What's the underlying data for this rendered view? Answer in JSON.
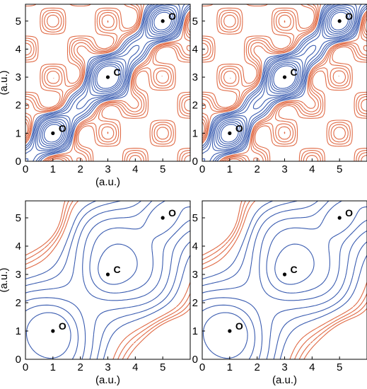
{
  "colors": {
    "positive_contour": "#3a5cb0",
    "negative_contour": "#e06a45",
    "axes": "#000000"
  },
  "axis_unit_label": "(a.u.)",
  "panels": [
    {
      "id": "top-left",
      "xlabel": "(a.u.)",
      "ylabel": "(a.u.)",
      "xlim": [
        0,
        6
      ],
      "ylim": [
        0,
        5.6
      ],
      "xticks": [
        "0",
        "1",
        "2",
        "3",
        "4",
        "5"
      ],
      "yticks": [
        "0",
        "1",
        "2",
        "3",
        "4",
        "5"
      ],
      "atoms": [
        {
          "label": "O",
          "x": 1,
          "y": 1
        },
        {
          "label": "C",
          "x": 3,
          "y": 3
        },
        {
          "label": "O",
          "x": 5,
          "y": 5
        }
      ]
    },
    {
      "id": "top-right",
      "xlabel": "",
      "ylabel": "",
      "xlim": [
        0,
        6
      ],
      "ylim": [
        0,
        5.6
      ],
      "xticks": [
        "0",
        "1",
        "2",
        "3",
        "4",
        "5"
      ],
      "yticks": [
        "0",
        "1",
        "2",
        "3",
        "4",
        "5"
      ],
      "atoms": [
        {
          "label": "O",
          "x": 1,
          "y": 1
        },
        {
          "label": "C",
          "x": 3,
          "y": 3
        },
        {
          "label": "O",
          "x": 5,
          "y": 5
        }
      ]
    },
    {
      "id": "bottom-left",
      "xlabel": "(a.u.)",
      "ylabel": "(a.u.)",
      "xlim": [
        0,
        6
      ],
      "ylim": [
        0,
        5.6
      ],
      "xticks": [
        "0",
        "1",
        "2",
        "3",
        "4",
        "5"
      ],
      "yticks": [
        "0",
        "1",
        "2",
        "3",
        "4",
        "5"
      ],
      "atoms": [
        {
          "label": "O",
          "x": 1,
          "y": 1
        },
        {
          "label": "C",
          "x": 3,
          "y": 3
        },
        {
          "label": "O",
          "x": 5,
          "y": 5
        }
      ]
    },
    {
      "id": "bottom-right",
      "xlabel": "(a.u.)",
      "ylabel": "",
      "xlim": [
        0,
        6
      ],
      "ylim": [
        0,
        5.6
      ],
      "xticks": [
        "0",
        "1",
        "2",
        "3",
        "4",
        "5"
      ],
      "yticks": [
        "0",
        "1",
        "2",
        "3",
        "4",
        "5"
      ],
      "atoms": [
        {
          "label": "O",
          "x": 1,
          "y": 1
        },
        {
          "label": "C",
          "x": 3,
          "y": 3
        },
        {
          "label": "O",
          "x": 5,
          "y": 5
        }
      ]
    }
  ]
}
